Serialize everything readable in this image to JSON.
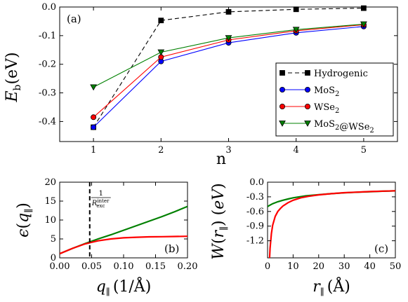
{
  "chart_data": [
    {
      "panel": "(a)",
      "type": "line",
      "xlabel": "n",
      "ylabel": "E_b(eV)",
      "xlim": [
        0.5,
        5.5
      ],
      "ylim": [
        -0.47,
        0.0
      ],
      "xticks": [
        "1",
        "2",
        "3",
        "4",
        "5"
      ],
      "yticks": [
        "0.0",
        "-0.1",
        "-0.2",
        "-0.3",
        "-0.4"
      ],
      "legend_position": "lower-right",
      "series": [
        {
          "name": "Hydrogenic",
          "color": "#000000",
          "marker": "square",
          "dashed": true,
          "x": [
            1,
            2,
            3,
            4,
            5
          ],
          "y": [
            -0.42,
            -0.047,
            -0.017,
            -0.008,
            -0.004
          ]
        },
        {
          "name": "MoS2",
          "color": "#0000ff",
          "marker": "circle",
          "dashed": false,
          "x": [
            1,
            2,
            3,
            4,
            5
          ],
          "y": [
            -0.42,
            -0.19,
            -0.125,
            -0.09,
            -0.068
          ]
        },
        {
          "name": "WSe2",
          "color": "#ff0000",
          "marker": "circle",
          "dashed": false,
          "x": [
            1,
            2,
            3,
            4,
            5
          ],
          "y": [
            -0.385,
            -0.175,
            -0.115,
            -0.083,
            -0.062
          ]
        },
        {
          "name": "MoS2@WSe2",
          "color": "#008000",
          "marker": "triangle-down",
          "dashed": false,
          "x": [
            1,
            2,
            3,
            4,
            5
          ],
          "y": [
            -0.28,
            -0.158,
            -0.108,
            -0.079,
            -0.06
          ]
        }
      ]
    },
    {
      "panel": "(b)",
      "type": "line",
      "xlabel": "q_∥ (1/Å)",
      "ylabel": "ϵ(q_∥)",
      "xlim": [
        0.0,
        0.2
      ],
      "ylim": [
        0,
        20
      ],
      "xticks": [
        "0.00",
        "0.05",
        "0.10",
        "0.15",
        "0.20"
      ],
      "yticks": [
        "0",
        "5",
        "10",
        "15",
        "20"
      ],
      "vline": {
        "x": 0.047,
        "label_num": "1",
        "label_den": "R",
        "label_sup": "inter",
        "label_sub": "exc"
      },
      "series": [
        {
          "color": "#008000",
          "x": [
            0,
            0.02,
            0.04,
            0.06,
            0.08,
            0.1,
            0.12,
            0.14,
            0.16,
            0.18,
            0.2
          ],
          "y": [
            1.1,
            2.5,
            3.8,
            5.0,
            6.1,
            7.3,
            8.5,
            9.7,
            10.9,
            12.2,
            13.6
          ]
        },
        {
          "color": "#ff0000",
          "x": [
            0,
            0.02,
            0.04,
            0.06,
            0.08,
            0.1,
            0.12,
            0.14,
            0.16,
            0.18,
            0.2
          ],
          "y": [
            1.1,
            2.5,
            3.7,
            4.5,
            5.0,
            5.3,
            5.45,
            5.55,
            5.6,
            5.65,
            5.7
          ]
        }
      ]
    },
    {
      "panel": "(c)",
      "type": "line",
      "xlabel": "r_∥ (Å)",
      "ylabel": "W(r_∥) (eV)",
      "xlim": [
        0,
        50
      ],
      "ylim": [
        -1.55,
        0.0
      ],
      "xticks": [
        "0",
        "10",
        "20",
        "30",
        "40",
        "50"
      ],
      "yticks": [
        "0.0",
        "-0.3",
        "-0.6",
        "-0.9",
        "-1.2"
      ],
      "series": [
        {
          "color": "#008000",
          "x": [
            0,
            1,
            2,
            4,
            6,
            8,
            10,
            15,
            20,
            25,
            30,
            35,
            40,
            45,
            50
          ],
          "y": [
            -0.5,
            -0.47,
            -0.44,
            -0.4,
            -0.37,
            -0.345,
            -0.32,
            -0.28,
            -0.255,
            -0.235,
            -0.218,
            -0.205,
            -0.195,
            -0.185,
            -0.178
          ]
        },
        {
          "color": "#ff0000",
          "x": [
            0.8,
            1.0,
            1.5,
            2,
            3,
            4,
            5,
            6,
            8,
            10,
            13,
            16,
            20,
            25,
            30,
            40,
            50
          ],
          "y": [
            -1.55,
            -1.35,
            -1.05,
            -0.88,
            -0.7,
            -0.6,
            -0.54,
            -0.49,
            -0.42,
            -0.37,
            -0.32,
            -0.29,
            -0.26,
            -0.235,
            -0.215,
            -0.192,
            -0.176
          ]
        }
      ]
    }
  ]
}
